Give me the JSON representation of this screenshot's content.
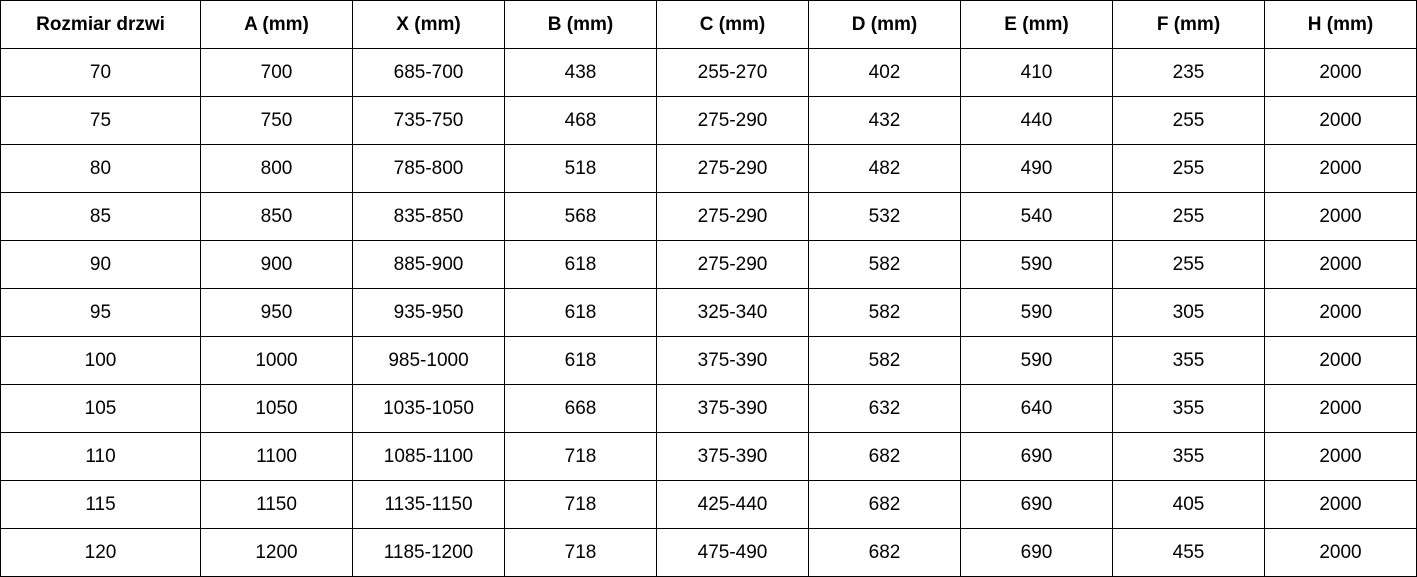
{
  "table": {
    "headers": [
      "Rozmiar drzwi",
      "A (mm)",
      "X (mm)",
      "B (mm)",
      "C (mm)",
      "D (mm)",
      "E (mm)",
      "F (mm)",
      "H (mm)"
    ],
    "rows": [
      [
        "70",
        "700",
        "685-700",
        "438",
        "255-270",
        "402",
        "410",
        "235",
        "2000"
      ],
      [
        "75",
        "750",
        "735-750",
        "468",
        "275-290",
        "432",
        "440",
        "255",
        "2000"
      ],
      [
        "80",
        "800",
        "785-800",
        "518",
        "275-290",
        "482",
        "490",
        "255",
        "2000"
      ],
      [
        "85",
        "850",
        "835-850",
        "568",
        "275-290",
        "532",
        "540",
        "255",
        "2000"
      ],
      [
        "90",
        "900",
        "885-900",
        "618",
        "275-290",
        "582",
        "590",
        "255",
        "2000"
      ],
      [
        "95",
        "950",
        "935-950",
        "618",
        "325-340",
        "582",
        "590",
        "305",
        "2000"
      ],
      [
        "100",
        "1000",
        "985-1000",
        "618",
        "375-390",
        "582",
        "590",
        "355",
        "2000"
      ],
      [
        "105",
        "1050",
        "1035-1050",
        "668",
        "375-390",
        "632",
        "640",
        "355",
        "2000"
      ],
      [
        "110",
        "1100",
        "1085-1100",
        "718",
        "375-390",
        "682",
        "690",
        "355",
        "2000"
      ],
      [
        "115",
        "1150",
        "1135-1150",
        "718",
        "425-440",
        "682",
        "690",
        "405",
        "2000"
      ],
      [
        "120",
        "1200",
        "1185-1200",
        "718",
        "475-490",
        "682",
        "690",
        "455",
        "2000"
      ]
    ]
  }
}
